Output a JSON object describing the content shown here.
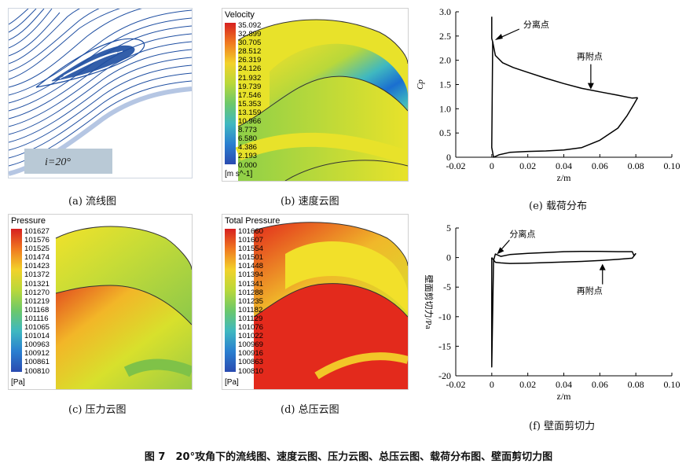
{
  "figure_caption": "图 7　20°攻角下的流线图、速度云图、压力云图、总压云图、载荷分布图、壁面剪切力图",
  "panels": {
    "a": {
      "caption": "(a)  流线图",
      "incidence_label": "i=20°"
    },
    "b": {
      "caption": "(b)  速度云图",
      "legend": {
        "title": "Velocity",
        "unit": "[m s^-1]",
        "values": [
          "35.092",
          "32.899",
          "30.705",
          "28.512",
          "26.319",
          "24.126",
          "21.932",
          "19.739",
          "17.546",
          "15.353",
          "13.159",
          "10.966",
          "8.773",
          "6.580",
          "4.386",
          "2.193",
          "0.000"
        ]
      }
    },
    "c": {
      "caption": "(c)  压力云图",
      "legend": {
        "title": "Pressure",
        "unit": "[Pa]",
        "values": [
          "101627",
          "101576",
          "101525",
          "101474",
          "101423",
          "101372",
          "101321",
          "101270",
          "101219",
          "101168",
          "101116",
          "101065",
          "101014",
          "100963",
          "100912",
          "100861",
          "100810"
        ]
      }
    },
    "d": {
      "caption": "(d)  总压云图",
      "legend": {
        "title": "Total Pressure",
        "unit": "[Pa]",
        "values": [
          "101660",
          "101607",
          "101554",
          "101501",
          "101448",
          "101394",
          "101341",
          "101288",
          "101235",
          "101182",
          "101129",
          "101076",
          "101022",
          "100969",
          "100916",
          "100863",
          "100810"
        ]
      }
    },
    "e": {
      "caption": "(e)  载荷分布"
    },
    "f": {
      "caption": "(f)  壁面剪切力"
    }
  },
  "chart_data": [
    {
      "type": "line",
      "panel": "e",
      "xlabel": "z/m",
      "ylabel": "Cp",
      "xlim": [
        -0.02,
        0.1
      ],
      "ylim": [
        0,
        3.0
      ],
      "xticks": [
        "-0.02",
        "0",
        "0.02",
        "0.04",
        "0.06",
        "0.08",
        "0.10"
      ],
      "yticks": [
        "0",
        "0.5",
        "1.0",
        "1.5",
        "2.0",
        "2.5",
        "3.0"
      ],
      "annotations": [
        {
          "text": "分离点",
          "x": 0.0,
          "y": 2.4
        },
        {
          "text": "再附点",
          "x": 0.055,
          "y": 1.4
        }
      ],
      "series": [
        {
          "x": [
            0.0,
            0.0,
            0.0005,
            0.002,
            0.006,
            0.012,
            0.02,
            0.03,
            0.04,
            0.05,
            0.06,
            0.07,
            0.078,
            0.081
          ],
          "y": [
            2.9,
            2.45,
            2.38,
            2.1,
            1.95,
            1.85,
            1.75,
            1.63,
            1.52,
            1.42,
            1.35,
            1.28,
            1.22,
            1.23
          ]
        },
        {
          "x": [
            0.0005,
            0.0,
            0.001,
            0.004,
            0.01,
            0.02,
            0.03,
            0.04,
            0.05,
            0.06,
            0.07,
            0.075,
            0.079,
            0.081
          ],
          "y": [
            2.38,
            0.2,
            0.0,
            0.05,
            0.1,
            0.12,
            0.13,
            0.15,
            0.2,
            0.35,
            0.6,
            0.85,
            1.1,
            1.23
          ]
        }
      ]
    },
    {
      "type": "line",
      "panel": "f",
      "xlabel": "z/m",
      "ylabel": "壁面剪切力/Pa",
      "xlim": [
        -0.02,
        0.1
      ],
      "ylim": [
        -20,
        5
      ],
      "xticks": [
        "-0.02",
        "0",
        "0.02",
        "0.04",
        "0.06",
        "0.08",
        "0.10"
      ],
      "yticks": [
        "5",
        "0",
        "-5",
        "-10",
        "-15",
        "-20"
      ],
      "annotations": [
        {
          "text": "分离点",
          "x": 0.002,
          "y": 0.3
        },
        {
          "text": "再附点",
          "x": 0.058,
          "y": -0.8
        }
      ],
      "series": [
        {
          "x": [
            0.0,
            0.0,
            0.001,
            0.002,
            0.005,
            0.01,
            0.02,
            0.03,
            0.04,
            0.05,
            0.06,
            0.07,
            0.078,
            0.079,
            0.08
          ],
          "y": [
            0.0,
            -18.5,
            -0.5,
            0.6,
            0.2,
            0.5,
            0.7,
            0.85,
            1.0,
            1.05,
            1.05,
            1.0,
            1.0,
            0.3,
            0.7
          ]
        },
        {
          "x": [
            0.0,
            0.002,
            0.005,
            0.01,
            0.02,
            0.03,
            0.04,
            0.05,
            0.06,
            0.07,
            0.078,
            0.08
          ],
          "y": [
            0.0,
            -0.8,
            -0.9,
            -1.0,
            -0.95,
            -0.85,
            -0.75,
            -0.65,
            -0.5,
            -0.3,
            -0.1,
            0.7
          ]
        }
      ]
    }
  ]
}
